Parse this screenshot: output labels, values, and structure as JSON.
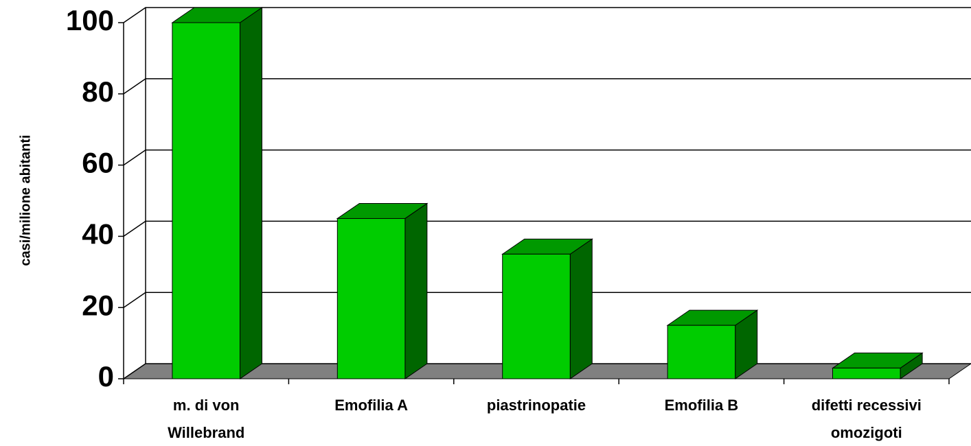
{
  "chart_data": {
    "type": "bar3d",
    "y_label": "casi/milione abitanti",
    "categories": [
      "m. di von Willebrand",
      "Emofilia A",
      "piastrinopatie",
      "Emofilia B",
      "difetti recessivi omozigoti"
    ],
    "values": [
      100,
      45,
      35,
      15,
      3
    ],
    "color": "#00cc00",
    "ylim": [
      0,
      100
    ],
    "yticks": [
      0,
      20,
      40,
      60,
      80,
      100
    ],
    "grid": true
  }
}
